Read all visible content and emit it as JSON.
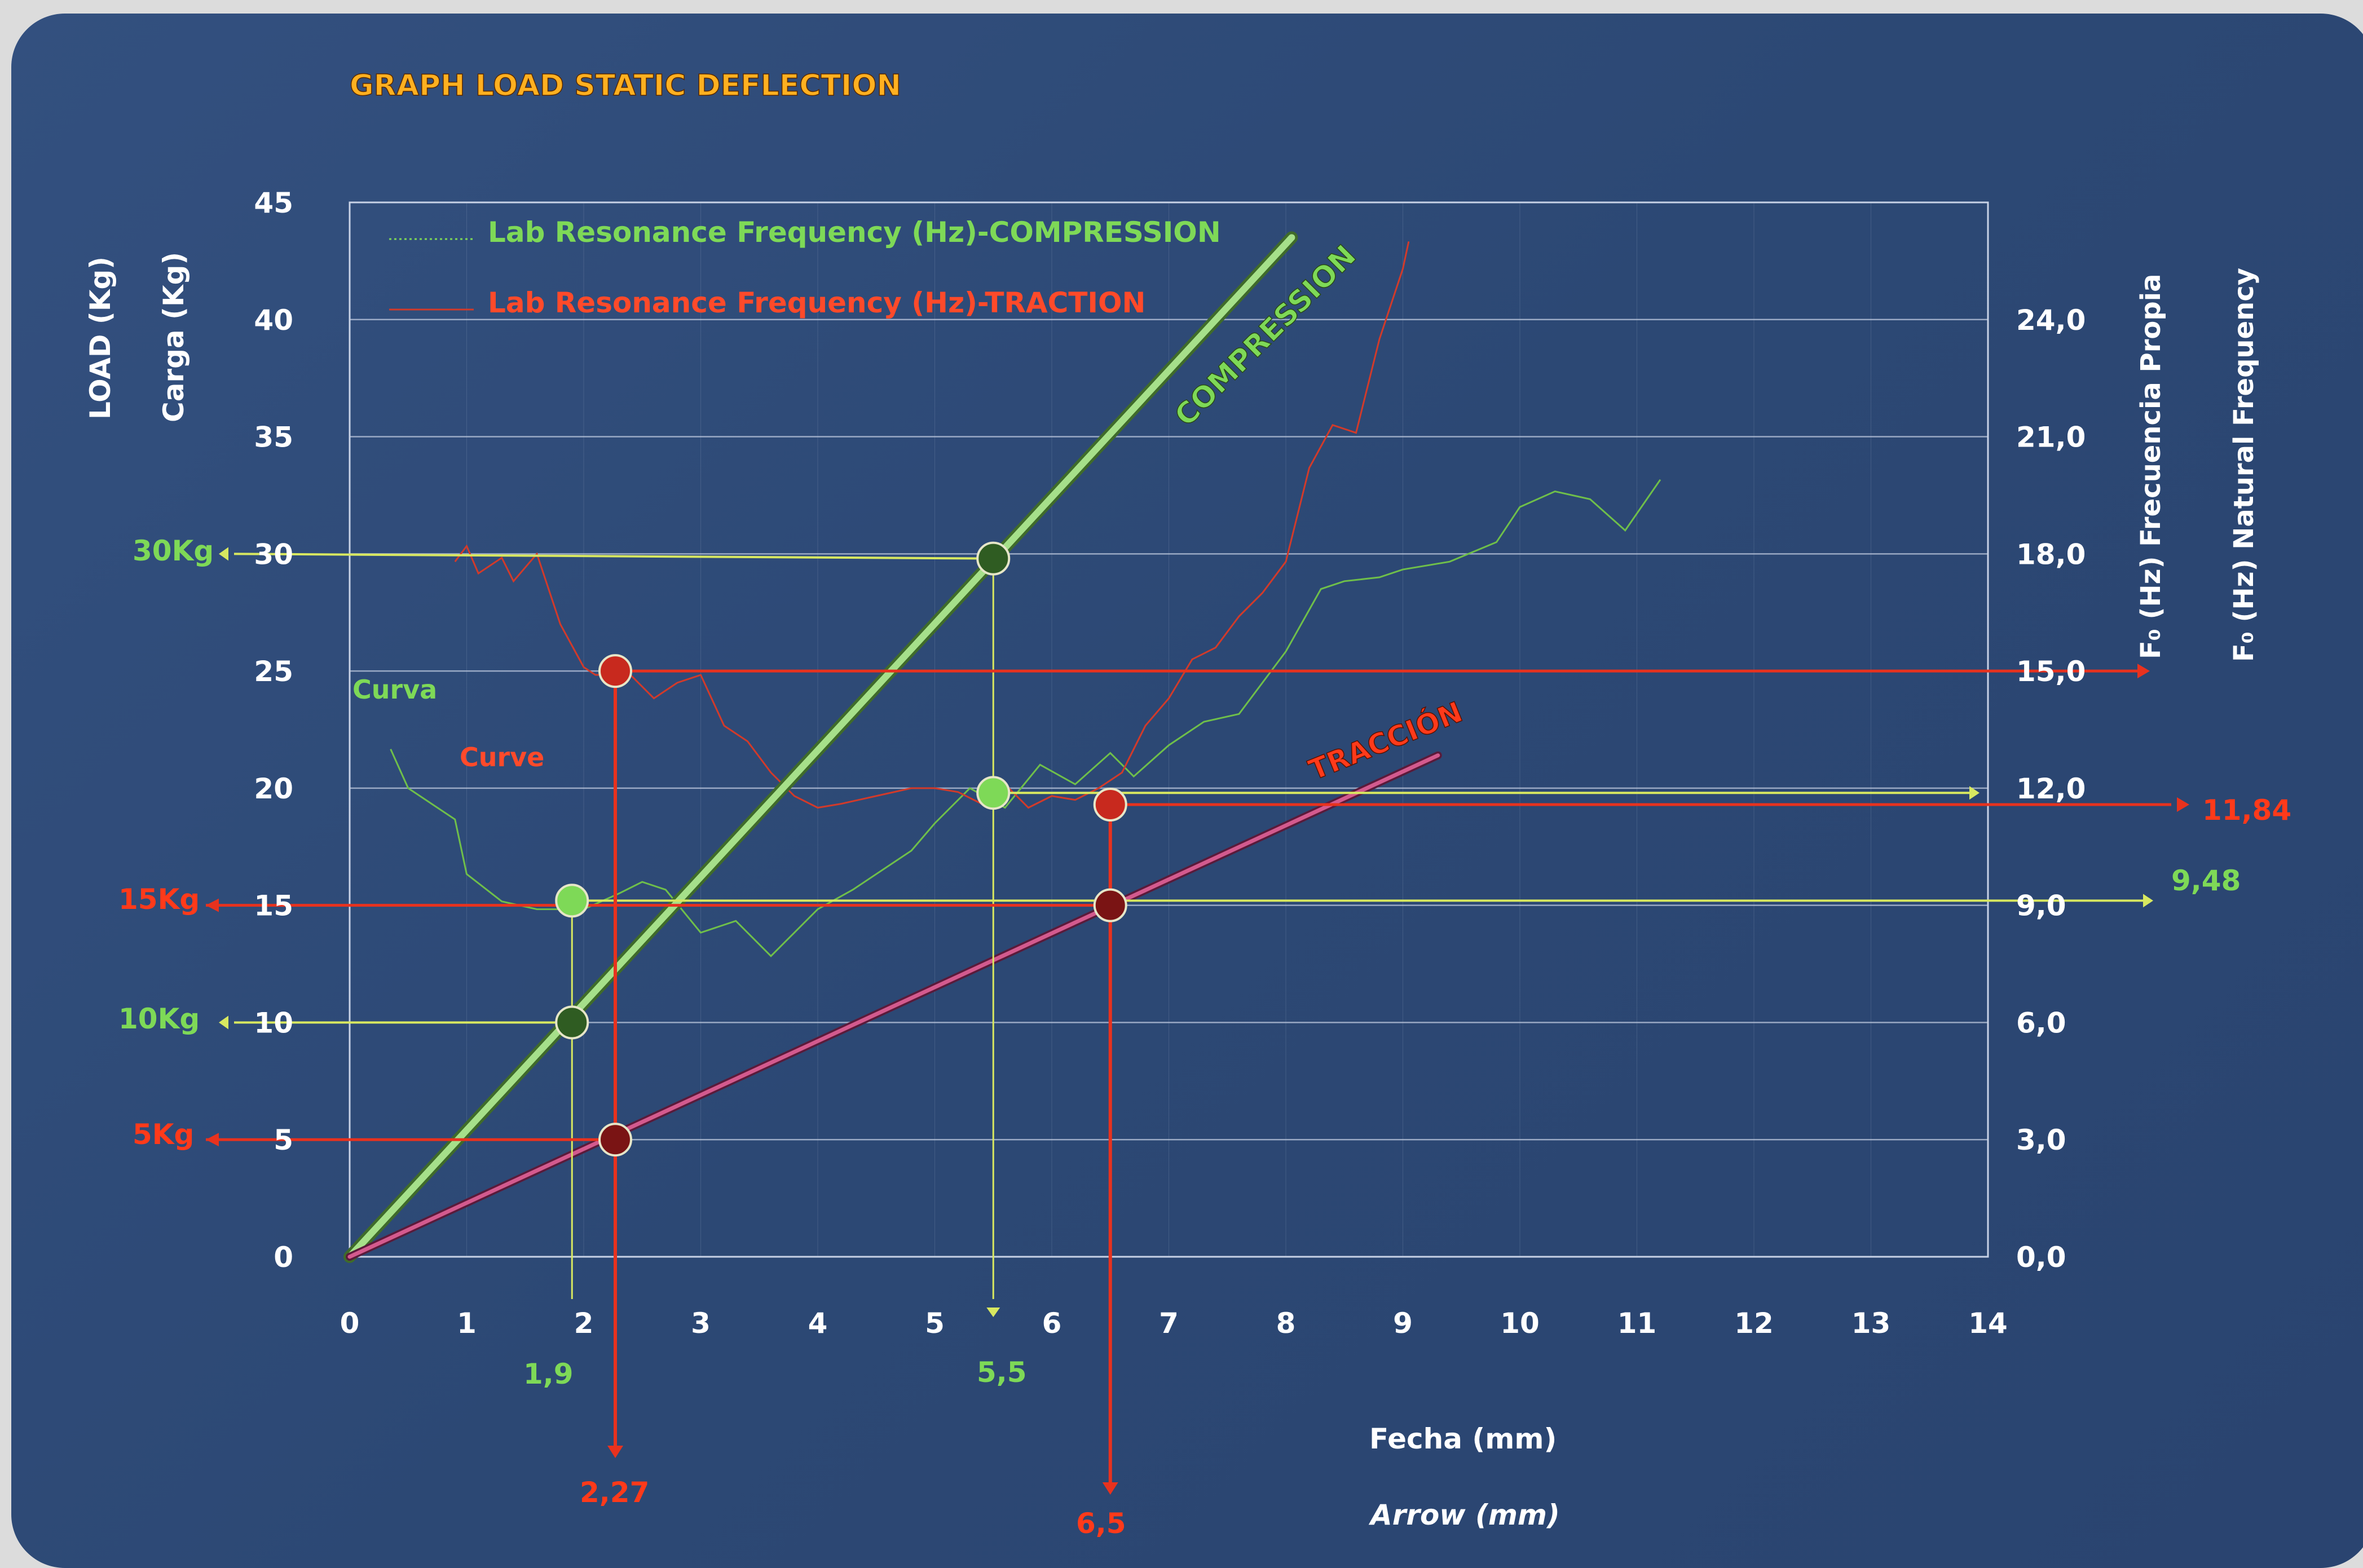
{
  "chart_data": {
    "type": "line",
    "title": "GRAPH LOAD STATIC DEFLECTION",
    "left_axis_labels": [
      "LOAD (Kg)",
      "Carga (Kg)"
    ],
    "right_axis_labels": [
      "F₀ (Hz) Frecuencia Propia",
      "F₀ (Hz) Natural Frequency"
    ],
    "x_axis_labels": [
      "Fecha (mm)",
      "Arrow (mm)"
    ],
    "xlim": [
      0,
      14
    ],
    "ylim": [
      0,
      45
    ],
    "y2lim": [
      0,
      27
    ],
    "x_ticks": [
      "0",
      "1",
      "2",
      "3",
      "4",
      "5",
      "6",
      "7",
      "8",
      "9",
      "10",
      "11",
      "12",
      "13",
      "14"
    ],
    "y_ticks": [
      "0",
      "5",
      "10",
      "15",
      "20",
      "25",
      "30",
      "35",
      "40",
      "45"
    ],
    "y2_ticks": [
      "0,0",
      "3,0",
      "6,0",
      "9,0",
      "12,0",
      "15,0",
      "18,0",
      "21,0",
      "24,0"
    ],
    "legend": [
      {
        "name": "Lab Resonance Frequency (Hz)-COMPRESSION",
        "color": "#7ed957"
      },
      {
        "name": "Lab Resonance Frequency (Hz)-TRACTION",
        "color": "#ff4a2a"
      }
    ],
    "line_labels": {
      "compression": "COMPRESSION",
      "traction": "TRACCIÓN",
      "curva": "Curva",
      "curve": "Curve"
    },
    "compression_line": {
      "x": [
        0,
        8.05
      ],
      "y": [
        0,
        43.5
      ]
    },
    "traction_line": {
      "x": [
        0,
        9.3
      ],
      "y": [
        0,
        21.4
      ]
    },
    "compression_freq_curve": {
      "x": [
        0.35,
        0.5,
        0.9,
        1.0,
        1.3,
        1.6,
        2.0,
        2.3,
        2.5,
        2.7,
        3.0,
        3.3,
        3.6,
        3.8,
        4.0,
        4.3,
        4.5,
        4.8,
        5.0,
        5.3,
        5.6,
        5.9,
        6.2,
        6.5,
        6.7,
        7.0,
        7.3,
        7.6,
        8.0,
        8.3,
        8.5,
        8.8,
        9.0,
        9.4,
        9.8,
        10.0,
        10.3,
        10.6,
        10.9,
        11.2
      ],
      "y": [
        13.0,
        12.0,
        11.2,
        9.8,
        9.1,
        8.9,
        8.9,
        9.3,
        9.6,
        9.4,
        8.3,
        8.6,
        7.7,
        8.3,
        8.9,
        9.4,
        9.8,
        10.4,
        11.1,
        12.0,
        11.5,
        12.6,
        12.1,
        12.9,
        12.3,
        13.1,
        13.7,
        13.9,
        15.5,
        17.1,
        17.3,
        17.4,
        17.6,
        17.8,
        18.3,
        19.2,
        19.6,
        19.4,
        18.6,
        19.9
      ]
    },
    "traction_freq_curve": {
      "x": [
        0.9,
        1.0,
        1.1,
        1.3,
        1.4,
        1.6,
        1.8,
        2.0,
        2.1,
        2.4,
        2.6,
        2.8,
        3.0,
        3.2,
        3.4,
        3.6,
        3.8,
        4.0,
        4.2,
        4.5,
        4.8,
        5.0,
        5.2,
        5.4,
        5.6,
        5.8,
        6.0,
        6.2,
        6.4,
        6.6,
        6.8,
        7.0,
        7.2,
        7.4,
        7.6,
        7.8,
        8.0,
        8.2,
        8.4,
        8.6,
        8.8,
        9.0,
        9.05
      ],
      "y": [
        17.8,
        18.2,
        17.5,
        17.9,
        17.3,
        18.0,
        16.2,
        15.1,
        14.9,
        14.9,
        14.3,
        14.7,
        14.9,
        13.6,
        13.2,
        12.4,
        11.8,
        11.5,
        11.6,
        11.8,
        12.0,
        12.0,
        11.9,
        11.6,
        12.1,
        11.5,
        11.8,
        11.7,
        12.0,
        12.4,
        13.6,
        14.3,
        15.3,
        15.6,
        16.4,
        17.0,
        17.8,
        20.2,
        21.3,
        21.1,
        23.5,
        25.3,
        26.0
      ]
    },
    "markers": [
      {
        "x": 1.9,
        "y": 10,
        "color": "#2f5c22"
      },
      {
        "x": 1.9,
        "y": 15.2,
        "color": "#7ed957"
      },
      {
        "x": 5.5,
        "y": 29.8,
        "color": "#2f5c22"
      },
      {
        "x": 5.5,
        "y": 19.8,
        "color": "#7ed957"
      },
      {
        "x": 2.27,
        "y": 25,
        "color": "#c8291e"
      },
      {
        "x": 2.27,
        "y": 5,
        "color": "#7a1414"
      },
      {
        "x": 6.5,
        "y": 19.3,
        "color": "#c8291e"
      },
      {
        "x": 6.5,
        "y": 15,
        "color": "#7a1414"
      }
    ],
    "annotations": {
      "load_30": "30Kg",
      "load_15": "15Kg",
      "load_10": "10Kg",
      "load_5": "5Kg",
      "x_19": "1,9",
      "x_55": "5,5",
      "x_227": "2,27",
      "x_65": "6,5",
      "freq_948": "9,48",
      "freq_1184": "11,84"
    }
  }
}
